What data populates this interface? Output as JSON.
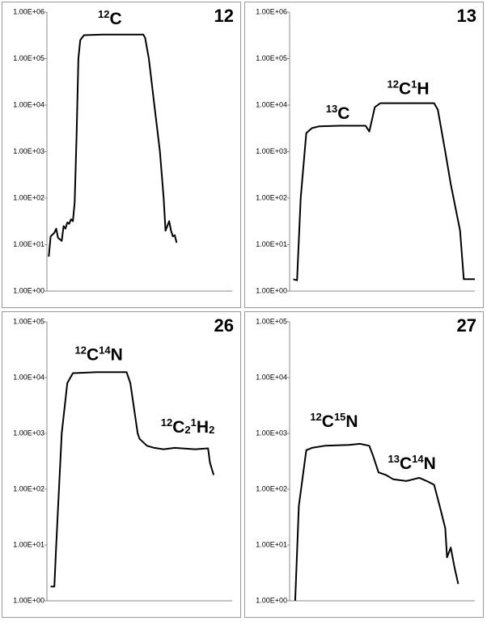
{
  "chart_data": [
    {
      "type": "line",
      "title": "12",
      "log_scale": true,
      "color": "#000000",
      "xlim": [
        0,
        100
      ],
      "ylim": [
        1,
        1000000
      ],
      "yticks": [
        {
          "value": 1,
          "label": "1.00E+00"
        },
        {
          "value": 10,
          "label": "1.00E+01"
        },
        {
          "value": 100,
          "label": "1.00E+02"
        },
        {
          "value": 1000,
          "label": "1.00E+03"
        },
        {
          "value": 10000,
          "label": "1.00E+04"
        },
        {
          "value": 100000,
          "label": "1.00E+05"
        },
        {
          "value": 1000000,
          "label": "1.00E+06"
        }
      ],
      "x": [
        1,
        2,
        4,
        5,
        6,
        8,
        9,
        10,
        11,
        12,
        13,
        14,
        15,
        16,
        17,
        18,
        20,
        30,
        50,
        52,
        53,
        55,
        58,
        61,
        63,
        64,
        65,
        66,
        67,
        68,
        69,
        70
      ],
      "values": [
        5.5,
        15,
        18,
        22,
        14,
        12,
        25,
        22,
        30,
        28,
        35,
        32,
        80,
        2000,
        100000,
        250000,
        320000,
        330000,
        330000,
        330000,
        280000,
        100000,
        10000,
        1000,
        100,
        20,
        25,
        32,
        20,
        15,
        16,
        11
      ],
      "annotations": [
        {
          "x": 34,
          "y": 700000,
          "parts": [
            {
              "t": "12",
              "s": "sup"
            },
            {
              "t": "C"
            }
          ]
        }
      ]
    },
    {
      "type": "line",
      "title": "13",
      "log_scale": true,
      "color": "#000000",
      "xlim": [
        0,
        100
      ],
      "ylim": [
        1,
        1000000
      ],
      "yticks": [
        {
          "value": 1,
          "label": "1.00E+00"
        },
        {
          "value": 10,
          "label": "1.00E+01"
        },
        {
          "value": 100,
          "label": "1.00E+02"
        },
        {
          "value": 1000,
          "label": "1.00E+03"
        },
        {
          "value": 10000,
          "label": "1.00E+04"
        },
        {
          "value": 100000,
          "label": "1.00E+05"
        },
        {
          "value": 1000000,
          "label": "1.00E+06"
        }
      ],
      "x": [
        2,
        4,
        6,
        9,
        12,
        16,
        27,
        41,
        43,
        46,
        49,
        78,
        80,
        84,
        87,
        92,
        94,
        100
      ],
      "values": [
        1.8,
        1.7,
        100,
        2500,
        3200,
        3500,
        3600,
        3600,
        2700,
        9000,
        11000,
        11000,
        8000,
        1000,
        200,
        20,
        1.8,
        1.8
      ],
      "annotations": [
        {
          "x": 26,
          "y": 6500,
          "parts": [
            {
              "t": "13",
              "s": "sup"
            },
            {
              "t": "C"
            }
          ]
        },
        {
          "x": 64,
          "y": 22000,
          "parts": [
            {
              "t": "12",
              "s": "sup"
            },
            {
              "t": "C"
            },
            {
              "t": "1",
              "s": "sup"
            },
            {
              "t": "H"
            }
          ]
        }
      ]
    },
    {
      "type": "line",
      "title": "26",
      "log_scale": true,
      "color": "#000000",
      "xlim": [
        0,
        100
      ],
      "ylim": [
        1,
        100000
      ],
      "yticks": [
        {
          "value": 1,
          "label": "1.00E+00"
        },
        {
          "value": 10,
          "label": "1.00E+01"
        },
        {
          "value": 100,
          "label": "1.00E+02"
        },
        {
          "value": 1000,
          "label": "1.00E+03"
        },
        {
          "value": 10000,
          "label": "1.00E+04"
        },
        {
          "value": 100000,
          "label": "1.00E+05"
        }
      ],
      "x": [
        2,
        4,
        5,
        8,
        11,
        14,
        27,
        43,
        45,
        49,
        50,
        54,
        58,
        63,
        69,
        80,
        87,
        88,
        90
      ],
      "values": [
        1.8,
        1.8,
        10,
        1000,
        8000,
        12000,
        12500,
        12500,
        8000,
        1000,
        800,
        600,
        550,
        520,
        550,
        520,
        540,
        300,
        180
      ],
      "annotations": [
        {
          "x": 28,
          "y": 25000,
          "parts": [
            {
              "t": "12",
              "s": "sup"
            },
            {
              "t": "C"
            },
            {
              "t": "14",
              "s": "sup"
            },
            {
              "t": "N"
            }
          ]
        },
        {
          "x": 76,
          "y": 1260,
          "parts": [
            {
              "t": "12",
              "s": "sup"
            },
            {
              "t": "C"
            },
            {
              "t": "2",
              "s": "sub"
            },
            {
              "t": "1",
              "s": "sup"
            },
            {
              "t": "H"
            },
            {
              "t": "2",
              "s": "sub"
            }
          ]
        }
      ]
    },
    {
      "type": "line",
      "title": "27",
      "log_scale": true,
      "color": "#000000",
      "xlim": [
        0,
        100
      ],
      "ylim": [
        1,
        100000
      ],
      "yticks": [
        {
          "value": 1,
          "label": "1.00E+00"
        },
        {
          "value": 10,
          "label": "1.00E+01"
        },
        {
          "value": 100,
          "label": "1.00E+02"
        },
        {
          "value": 1000,
          "label": "1.00E+03"
        },
        {
          "value": 10000,
          "label": "1.00E+04"
        },
        {
          "value": 100000,
          "label": "1.00E+05"
        }
      ],
      "x": [
        3,
        5,
        9,
        12,
        19,
        32,
        38,
        43,
        45,
        48,
        52,
        56,
        63,
        70,
        74,
        78,
        81,
        84,
        85,
        87,
        89,
        91
      ],
      "values": [
        1,
        50,
        500,
        550,
        600,
        620,
        650,
        600,
        400,
        200,
        180,
        150,
        140,
        160,
        140,
        120,
        50,
        20,
        6,
        9,
        4,
        2
      ],
      "annotations": [
        {
          "x": 24,
          "y": 1600,
          "parts": [
            {
              "t": "12",
              "s": "sup"
            },
            {
              "t": "C"
            },
            {
              "t": "15",
              "s": "sup"
            },
            {
              "t": "N"
            }
          ]
        },
        {
          "x": 66,
          "y": 280,
          "parts": [
            {
              "t": "13",
              "s": "sup"
            },
            {
              "t": "C"
            },
            {
              "t": "14",
              "s": "sup"
            },
            {
              "t": "N"
            }
          ]
        }
      ]
    }
  ]
}
